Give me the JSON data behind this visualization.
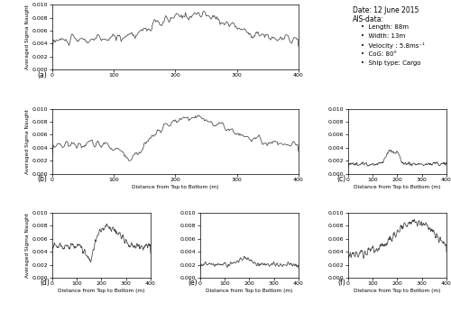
{
  "ylabel": "Averaged Sigma Naught",
  "xlabel": "Distance from Top to Bottom (m)",
  "ylim": [
    0.0,
    0.01
  ],
  "xlim": [
    0,
    400
  ],
  "yticks": [
    0.0,
    0.002,
    0.004,
    0.006,
    0.008,
    0.01
  ],
  "xticks": [
    0,
    100,
    200,
    300,
    400
  ],
  "subplot_labels": [
    "(a)",
    "(b)",
    "(c)",
    "(d)",
    "(e)",
    "(f)"
  ],
  "info_title": "Date: 12 June 2015",
  "info_sub": "AIS-data:",
  "info_bullets": [
    "Length: 88m",
    "Width: 13m",
    "Velocity : 5.8ms⁻¹",
    "CoG: 80°",
    "Ship type: Cargo"
  ],
  "line_color": "#444444",
  "background_color": "#ffffff"
}
